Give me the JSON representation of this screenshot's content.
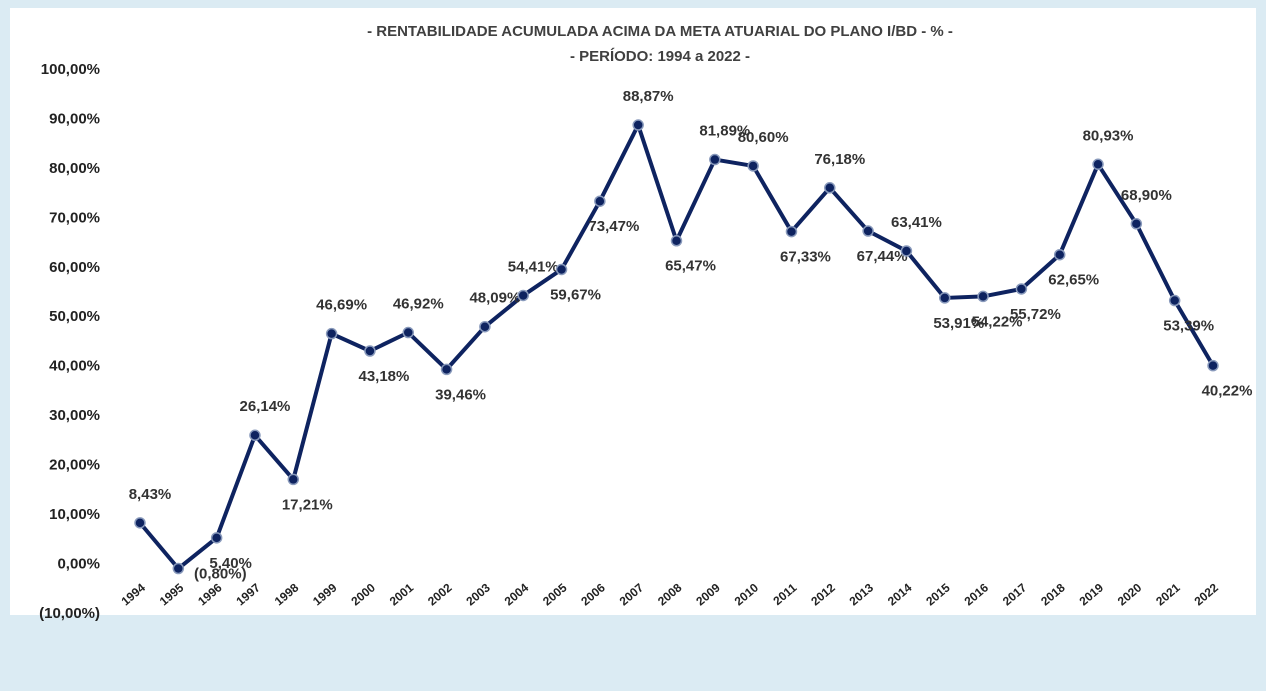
{
  "chart_data": {
    "type": "line",
    "title": "- RENTABILIDADE ACUMULADA ACIMA DA META ATUARIAL DO PLANO I/BD - % -",
    "subtitle": "- PERÍODO: 1994 a 2022 -",
    "categories": [
      "1994",
      "1995",
      "1996",
      "1997",
      "1998",
      "1999",
      "2000",
      "2001",
      "2002",
      "2003",
      "2004",
      "2005",
      "2006",
      "2007",
      "2008",
      "2009",
      "2010",
      "2011",
      "2012",
      "2013",
      "2014",
      "2015",
      "2016",
      "2017",
      "2018",
      "2019",
      "2020",
      "2021",
      "2022"
    ],
    "series": [
      {
        "name": "Rentabilidade acumulada",
        "color": "#0e2360",
        "values": [
          8.43,
          -0.8,
          5.4,
          26.14,
          17.21,
          46.69,
          43.18,
          46.92,
          39.46,
          48.09,
          54.41,
          59.67,
          73.47,
          88.87,
          65.47,
          81.89,
          80.6,
          67.33,
          76.18,
          67.44,
          63.41,
          53.91,
          54.22,
          55.72,
          62.65,
          80.93,
          68.9,
          53.39,
          40.22
        ],
        "value_labels": [
          "8,43%",
          "(0,80%)",
          "5,40%",
          "26,14%",
          "17,21%",
          "46,69%",
          "43,18%",
          "46,92%",
          "39,46%",
          "48,09%",
          "54,41%",
          "59,67%",
          "73,47%",
          "88,87%",
          "65,47%",
          "81,89%",
          "80,60%",
          "67,33%",
          "76,18%",
          "67,44%",
          "63,41%",
          "53,91%",
          "54,22%",
          "55,72%",
          "62,65%",
          "80,93%",
          "68,90%",
          "53,39%",
          "40,22%"
        ]
      }
    ],
    "negative_color": "#ff0000",
    "ylim": [
      -10,
      100
    ],
    "yticks": [
      {
        "value": -10,
        "label": "(10,00%)"
      },
      {
        "value": 0,
        "label": "0,00%"
      },
      {
        "value": 10,
        "label": "10,00%"
      },
      {
        "value": 20,
        "label": "20,00%"
      },
      {
        "value": 30,
        "label": "30,00%"
      },
      {
        "value": 40,
        "label": "40,00%"
      },
      {
        "value": 50,
        "label": "50,00%"
      },
      {
        "value": 60,
        "label": "60,00%"
      },
      {
        "value": 70,
        "label": "70,00%"
      },
      {
        "value": 80,
        "label": "80,00%"
      },
      {
        "value": 90,
        "label": "90,00%"
      },
      {
        "value": 100,
        "label": "100,00%"
      }
    ],
    "grid": false
  }
}
